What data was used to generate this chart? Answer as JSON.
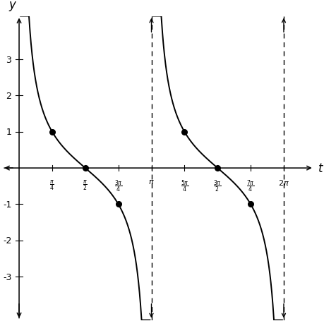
{
  "title": "",
  "xlabel": "t",
  "ylabel": "y",
  "xlim": [
    -0.4,
    7.0
  ],
  "ylim": [
    -4.2,
    4.2
  ],
  "yticks": [
    -3,
    -2,
    -1,
    1,
    2,
    3
  ],
  "xtick_positions": [
    0.7853981633974483,
    1.5707963267948966,
    2.356194490192345,
    3.141592653589793,
    3.9269908169872414,
    4.71238898038469,
    5.497787143782138,
    6.283185307179586
  ],
  "xtick_labels": [
    "\\frac{\\pi}{4}",
    "\\frac{\\pi}{2}",
    "\\frac{3\\pi}{4}",
    "\\pi",
    "\\frac{5\\pi}{4}",
    "\\frac{3\\pi}{2}",
    "\\frac{7\\pi}{4}",
    "2\\pi"
  ],
  "asymptotes_dashed": [
    3.141592653589793,
    6.283185307179586
  ],
  "dot_points": [
    [
      0.7853981633974483,
      1.0
    ],
    [
      1.5707963267948966,
      0.0
    ],
    [
      2.356194490192345,
      -1.0
    ],
    [
      3.9269908169872414,
      1.0
    ],
    [
      4.71238898038469,
      0.0
    ],
    [
      5.497787143782138,
      -1.0
    ]
  ],
  "curve_color": "#000000",
  "background_color": "#ffffff",
  "dot_color": "#000000",
  "axis_color": "#000000",
  "font_size": 11,
  "tick_font_size": 9,
  "label_font_size": 12
}
